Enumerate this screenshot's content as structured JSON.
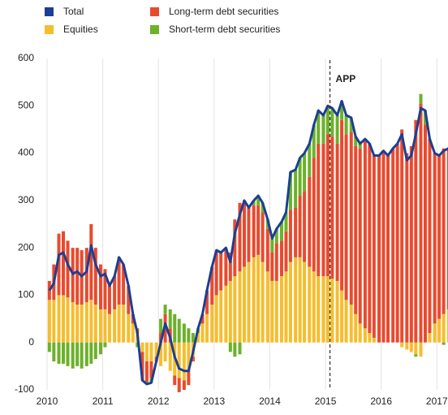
{
  "chart_data": {
    "type": "bar",
    "stacked": true,
    "x": [
      2010,
      2010.08,
      2010.17,
      2010.25,
      2010.33,
      2010.42,
      2010.5,
      2010.58,
      2010.67,
      2010.75,
      2010.83,
      2010.92,
      2011,
      2011.08,
      2011.17,
      2011.25,
      2011.33,
      2011.42,
      2011.5,
      2011.58,
      2011.67,
      2011.75,
      2011.83,
      2011.92,
      2012,
      2012.08,
      2012.17,
      2012.25,
      2012.33,
      2012.42,
      2012.5,
      2012.58,
      2012.67,
      2012.75,
      2012.83,
      2012.92,
      2013,
      2013.08,
      2013.17,
      2013.25,
      2013.33,
      2013.42,
      2013.5,
      2013.58,
      2013.67,
      2013.75,
      2013.83,
      2013.92,
      2014,
      2014.08,
      2014.17,
      2014.25,
      2014.33,
      2014.42,
      2014.5,
      2014.58,
      2014.67,
      2014.75,
      2014.83,
      2014.92,
      2015,
      2015.08,
      2015.17,
      2015.25,
      2015.33,
      2015.42,
      2015.5,
      2015.58,
      2015.67,
      2015.75,
      2015.83,
      2015.92,
      2016,
      2016.08,
      2016.17,
      2016.25,
      2016.33,
      2016.42,
      2016.5,
      2016.58,
      2016.67,
      2016.75,
      2016.83,
      2016.92,
      2017,
      2017.08,
      2017.17,
      2017.25
    ],
    "series": [
      {
        "name": "Equities",
        "color": "#f6bd2d",
        "values": [
          90,
          90,
          100,
          100,
          95,
          85,
          80,
          80,
          85,
          90,
          80,
          70,
          70,
          60,
          70,
          80,
          80,
          60,
          40,
          20,
          -20,
          -40,
          -40,
          -30,
          -50,
          -40,
          -60,
          -70,
          -75,
          -80,
          -60,
          -30,
          20,
          40,
          60,
          80,
          100,
          110,
          120,
          130,
          140,
          150,
          160,
          170,
          180,
          185,
          170,
          150,
          130,
          130,
          140,
          150,
          170,
          180,
          180,
          170,
          160,
          150,
          140,
          140,
          140,
          135,
          130,
          110,
          90,
          80,
          60,
          40,
          30,
          20,
          10,
          0,
          0,
          0,
          0,
          0,
          -10,
          -15,
          -20,
          -25,
          -30,
          0,
          20,
          40,
          50,
          60,
          70,
          80
        ]
      },
      {
        "name": "Long-term debt securities",
        "color": "#e94a2e",
        "values": [
          40,
          75,
          130,
          135,
          120,
          115,
          120,
          115,
          115,
          160,
          120,
          95,
          85,
          60,
          70,
          100,
          85,
          60,
          20,
          10,
          -60,
          -43,
          -35,
          -10,
          20,
          60,
          30,
          -20,
          -30,
          -20,
          -30,
          -10,
          0,
          20,
          50,
          80,
          95,
          80,
          80,
          60,
          120,
          145,
          140,
          115,
          110,
          105,
          105,
          90,
          60,
          80,
          75,
          85,
          110,
          105,
          130,
          150,
          190,
          240,
          280,
          280,
          300,
          300,
          290,
          360,
          350,
          365,
          355,
          370,
          400,
          400,
          385,
          395,
          405,
          395,
          410,
          420,
          450,
          400,
          415,
          470,
          505,
          460,
          410,
          360,
          345,
          350,
          340,
          325
        ]
      },
      {
        "name": "Short-term debt securities",
        "color": "#6cb12a",
        "values": [
          -20,
          -40,
          -45,
          -45,
          -50,
          -55,
          -50,
          -55,
          -50,
          -45,
          -35,
          -25,
          -10,
          0,
          0,
          0,
          0,
          0,
          0,
          -10,
          0,
          -5,
          -10,
          0,
          30,
          20,
          40,
          60,
          50,
          40,
          30,
          20,
          10,
          0,
          0,
          0,
          0,
          0,
          0,
          -20,
          -30,
          -25,
          0,
          0,
          10,
          20,
          20,
          20,
          30,
          30,
          40,
          40,
          80,
          80,
          80,
          80,
          70,
          70,
          70,
          60,
          60,
          60,
          60,
          40,
          40,
          30,
          20,
          10,
          0,
          0,
          0,
          0,
          0,
          0,
          0,
          0,
          0,
          0,
          0,
          -5,
          20,
          30,
          0,
          0,
          0,
          -5,
          0,
          0
        ]
      },
      {
        "name": "Total",
        "color": "#1c3f94",
        "line": true,
        "values": [
          110,
          125,
          185,
          190,
          165,
          145,
          150,
          140,
          150,
          205,
          165,
          140,
          145,
          120,
          140,
          180,
          165,
          120,
          60,
          20,
          -80,
          -88,
          -85,
          -40,
          0,
          40,
          10,
          -30,
          -55,
          -60,
          -60,
          -20,
          30,
          60,
          110,
          160,
          195,
          190,
          200,
          170,
          230,
          270,
          300,
          285,
          300,
          310,
          295,
          260,
          220,
          240,
          255,
          275,
          360,
          365,
          390,
          400,
          420,
          460,
          490,
          480,
          500,
          495,
          480,
          510,
          480,
          475,
          435,
          420,
          430,
          420,
          395,
          395,
          405,
          395,
          410,
          420,
          440,
          385,
          395,
          440,
          495,
          490,
          430,
          400,
          395,
          405,
          410,
          405
        ]
      }
    ],
    "legend_order": [
      3,
      1,
      0,
      2
    ],
    "annotations": [
      {
        "text": "APP",
        "x": 2015.08
      }
    ],
    "xlim": [
      2010,
      2017.2
    ],
    "xticks": [
      2010,
      2011,
      2012,
      2013,
      2014,
      2015,
      2016,
      2017
    ],
    "ylim": [
      -100,
      600
    ],
    "yticks": [
      -100,
      0,
      100,
      200,
      300,
      400,
      500,
      600
    ],
    "grid": "x"
  }
}
